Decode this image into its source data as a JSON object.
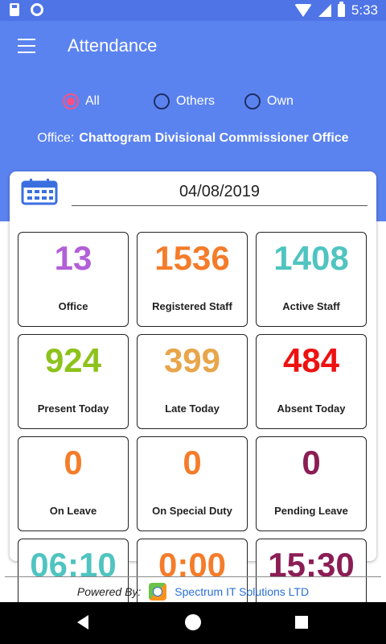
{
  "status_bar": {
    "time": "5:33"
  },
  "app_bar": {
    "title": "Attendance"
  },
  "filter": {
    "options": [
      {
        "label": "All",
        "checked": true
      },
      {
        "label": "Others",
        "checked": false
      },
      {
        "label": "Own",
        "checked": false
      }
    ]
  },
  "office": {
    "label": "Office:",
    "value": "Chattogram Divisional Commissioner Office"
  },
  "date": {
    "value": "04/08/2019"
  },
  "tiles": [
    {
      "value": "13",
      "label": "Office",
      "color": "#b25fd8"
    },
    {
      "value": "1536",
      "label": "Registered Staff",
      "color": "#f47c2a"
    },
    {
      "value": "1408",
      "label": "Active Staff",
      "color": "#4fc4c0"
    },
    {
      "value": "924",
      "label": "Present Today",
      "color": "#8dc21b"
    },
    {
      "value": "399",
      "label": "Late Today",
      "color": "#e8a54a"
    },
    {
      "value": "484",
      "label": "Absent Today",
      "color": "#ee1111"
    },
    {
      "value": "0",
      "label": "On Leave",
      "color": "#f47c2a"
    },
    {
      "value": "0",
      "label": "On Special Duty",
      "color": "#f47c2a"
    },
    {
      "value": "0",
      "label": "Pending Leave",
      "color": "#8b1d55"
    },
    {
      "value": "06:10",
      "label": "",
      "color": "#4fc4c0"
    },
    {
      "value": "0:00",
      "label": "",
      "color": "#f47c2a"
    },
    {
      "value": "15:30",
      "label": "",
      "color": "#8b1d55"
    }
  ],
  "footer": {
    "powered_by": "Powered By:",
    "company": "Spectrum IT Solutions LTD"
  },
  "colors": {
    "primary": "#5b83f0",
    "status_bar": "#4e74e6",
    "accent": "#ff4f83"
  }
}
